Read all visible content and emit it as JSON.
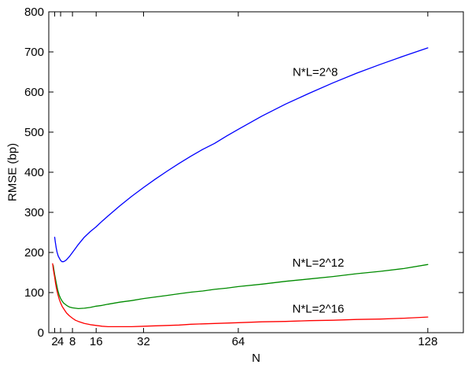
{
  "chart_data": {
    "type": "line",
    "title": "",
    "xlabel": "N",
    "ylabel": "RMSE (bp)",
    "xlim": [
      0,
      140
    ],
    "ylim": [
      0,
      800
    ],
    "x_ticks": [
      2,
      4,
      8,
      16,
      32,
      64,
      128
    ],
    "y_ticks": [
      0,
      100,
      200,
      300,
      400,
      500,
      600,
      700,
      800
    ],
    "grid": false,
    "legend_position": "none-inline-annotations",
    "background": "#ffffff",
    "axis_color": "#000000",
    "text_color": "#000000",
    "series": [
      {
        "name": "NxL-2pow8",
        "label": "N*L=2^8",
        "color": "#0000ff",
        "points": [
          [
            2,
            238
          ],
          [
            2.2,
            226
          ],
          [
            2.5,
            212
          ],
          [
            2.8,
            201
          ],
          [
            3.2,
            191
          ],
          [
            3.6,
            185
          ],
          [
            4,
            180
          ],
          [
            4.5,
            177
          ],
          [
            5,
            177
          ],
          [
            5.5,
            179
          ],
          [
            6,
            182
          ],
          [
            6.5,
            186
          ],
          [
            7,
            190
          ],
          [
            8,
            200
          ],
          [
            9,
            210
          ],
          [
            10,
            220
          ],
          [
            11,
            229
          ],
          [
            12,
            238
          ],
          [
            14,
            252
          ],
          [
            16,
            264
          ],
          [
            18,
            278
          ],
          [
            20,
            291
          ],
          [
            24,
            316
          ],
          [
            28,
            340
          ],
          [
            32,
            362
          ],
          [
            36,
            383
          ],
          [
            40,
            403
          ],
          [
            44,
            422
          ],
          [
            48,
            440
          ],
          [
            52,
            457
          ],
          [
            56,
            472
          ],
          [
            60,
            490
          ],
          [
            64,
            507
          ],
          [
            72,
            540
          ],
          [
            80,
            570
          ],
          [
            88,
            597
          ],
          [
            96,
            623
          ],
          [
            104,
            647
          ],
          [
            112,
            669
          ],
          [
            120,
            690
          ],
          [
            128,
            710
          ]
        ]
      },
      {
        "name": "NxL-2pow12",
        "label": "N*L=2^12",
        "color": "#008b00",
        "points": [
          [
            1.5,
            168
          ],
          [
            2,
            145
          ],
          [
            2.5,
            125
          ],
          [
            3,
            107
          ],
          [
            3.5,
            94
          ],
          [
            4,
            85
          ],
          [
            4.5,
            79
          ],
          [
            5,
            74
          ],
          [
            6,
            68
          ],
          [
            7,
            64
          ],
          [
            8,
            62
          ],
          [
            9,
            61
          ],
          [
            10,
            60
          ],
          [
            12,
            61
          ],
          [
            14,
            63
          ],
          [
            16,
            66
          ],
          [
            18,
            68
          ],
          [
            20,
            71
          ],
          [
            24,
            76
          ],
          [
            28,
            80
          ],
          [
            32,
            85
          ],
          [
            36,
            89
          ],
          [
            40,
            93
          ],
          [
            44,
            97
          ],
          [
            48,
            101
          ],
          [
            52,
            104
          ],
          [
            56,
            108
          ],
          [
            60,
            111
          ],
          [
            64,
            115
          ],
          [
            72,
            121
          ],
          [
            80,
            128
          ],
          [
            88,
            134
          ],
          [
            96,
            140
          ],
          [
            104,
            147
          ],
          [
            112,
            153
          ],
          [
            120,
            160
          ],
          [
            128,
            170
          ]
        ]
      },
      {
        "name": "NxL-2pow16",
        "label": "N*L=2^16",
        "color": "#ff0000",
        "points": [
          [
            1.3,
            172
          ],
          [
            1.6,
            155
          ],
          [
            2,
            138
          ],
          [
            2.3,
            122
          ],
          [
            2.6,
            110
          ],
          [
            3,
            97
          ],
          [
            3.5,
            84
          ],
          [
            4,
            74
          ],
          [
            4.5,
            66
          ],
          [
            5,
            60
          ],
          [
            6,
            49
          ],
          [
            7,
            42
          ],
          [
            8,
            36
          ],
          [
            9,
            31
          ],
          [
            10,
            28
          ],
          [
            12,
            23
          ],
          [
            14,
            20
          ],
          [
            16,
            18
          ],
          [
            18,
            16
          ],
          [
            20,
            15
          ],
          [
            24,
            15
          ],
          [
            28,
            15
          ],
          [
            32,
            16
          ],
          [
            36,
            17
          ],
          [
            40,
            18
          ],
          [
            44,
            19
          ],
          [
            48,
            21
          ],
          [
            52,
            22
          ],
          [
            56,
            23
          ],
          [
            60,
            24
          ],
          [
            64,
            25
          ],
          [
            72,
            27
          ],
          [
            80,
            28
          ],
          [
            88,
            30
          ],
          [
            96,
            31
          ],
          [
            104,
            33
          ],
          [
            112,
            34
          ],
          [
            120,
            36
          ],
          [
            128,
            39
          ]
        ]
      }
    ],
    "annotations": [
      {
        "text": "N*L=2^8",
        "x": 90,
        "y": 650
      },
      {
        "text": "N*L=2^12",
        "x": 91,
        "y": 175
      },
      {
        "text": "N*L=2^16",
        "x": 91,
        "y": 60
      }
    ]
  }
}
